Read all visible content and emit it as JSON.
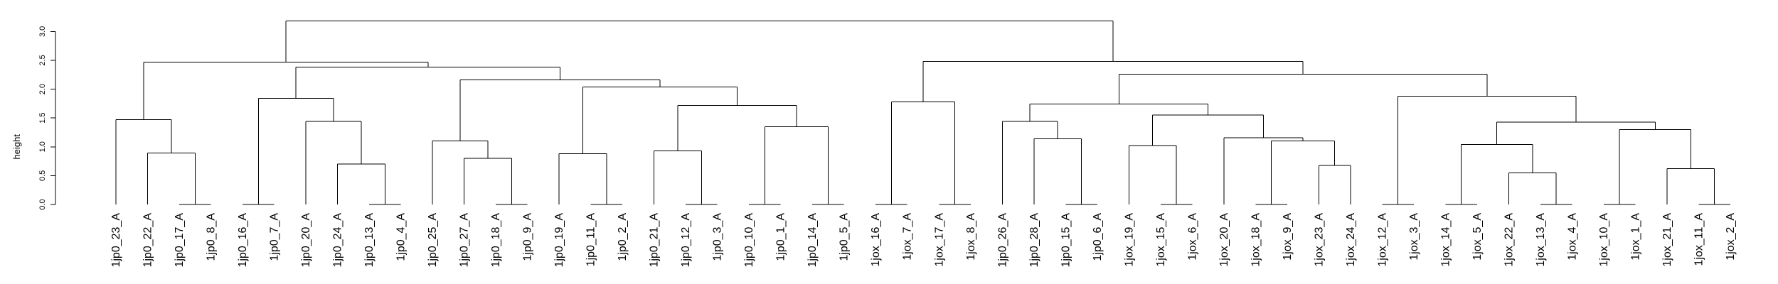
{
  "chart_data": {
    "type": "dendrogram",
    "ylabel": "height",
    "ylim": [
      0,
      3.3
    ],
    "yticks": [
      "0.0",
      "0.5",
      "1.0",
      "1.5",
      "2.0",
      "2.5",
      "3.0"
    ],
    "leaves": [
      "1jp0_23_A",
      "1jp0_22_A",
      "1jp0_17_A",
      "1jp0_8_A",
      "1jp0_16_A",
      "1jp0_7_A",
      "1jp0_20_A",
      "1jp0_24_A",
      "1jp0_13_A",
      "1jp0_4_A",
      "1jp0_25_A",
      "1jp0_27_A",
      "1jp0_18_A",
      "1jp0_9_A",
      "1jp0_19_A",
      "1jp0_11_A",
      "1jp0_2_A",
      "1jp0_21_A",
      "1jp0_12_A",
      "1jp0_3_A",
      "1jp0_10_A",
      "1jp0_1_A",
      "1jp0_14_A",
      "1jp0_5_A",
      "1jox_16_A",
      "1jox_7_A",
      "1jox_17_A",
      "1jox_8_A",
      "1jp0_26_A",
      "1jp0_28_A",
      "1jp0_15_A",
      "1jp0_6_A",
      "1jox_19_A",
      "1jox_15_A",
      "1jox_6_A",
      "1jox_20_A",
      "1jox_18_A",
      "1jox_9_A",
      "1jox_23_A",
      "1jox_24_A",
      "1jox_12_A",
      "1jox_3_A",
      "1jox_14_A",
      "1jox_5_A",
      "1jox_22_A",
      "1jox_13_A",
      "1jox_4_A",
      "1jox_10_A",
      "1jox_1_A",
      "1jox_21_A",
      "1jox_11_A",
      "1jox_2_A"
    ],
    "merges": [
      {
        "a": "L2",
        "b": "L3",
        "height": 0.0
      },
      {
        "a": "L1",
        "b": "M0",
        "height": 0.89
      },
      {
        "a": "L0",
        "b": "M1",
        "height": 1.47
      },
      {
        "a": "L4",
        "b": "L5",
        "height": 0.0
      },
      {
        "a": "L8",
        "b": "L9",
        "height": 0.0
      },
      {
        "a": "L7",
        "b": "M4",
        "height": 0.7
      },
      {
        "a": "L6",
        "b": "M5",
        "height": 1.44
      },
      {
        "a": "M3",
        "b": "M6",
        "height": 1.84
      },
      {
        "a": "L12",
        "b": "L13",
        "height": 0.0
      },
      {
        "a": "L11",
        "b": "M8",
        "height": 0.8
      },
      {
        "a": "L10",
        "b": "M9",
        "height": 1.1
      },
      {
        "a": "L15",
        "b": "L16",
        "height": 0.0
      },
      {
        "a": "L14",
        "b": "M11",
        "height": 0.88
      },
      {
        "a": "L18",
        "b": "L19",
        "height": 0.0
      },
      {
        "a": "L17",
        "b": "M13",
        "height": 0.93
      },
      {
        "a": "L20",
        "b": "L21",
        "height": 0.0
      },
      {
        "a": "L22",
        "b": "L23",
        "height": 0.0
      },
      {
        "a": "M15",
        "b": "M16",
        "height": 1.35
      },
      {
        "a": "M14",
        "b": "M17",
        "height": 1.72
      },
      {
        "a": "M12",
        "b": "M18",
        "height": 2.04
      },
      {
        "a": "M10",
        "b": "M19",
        "height": 2.16
      },
      {
        "a": "M7",
        "b": "M20",
        "height": 2.38
      },
      {
        "a": "M2",
        "b": "M21",
        "height": 2.47
      },
      {
        "a": "L24",
        "b": "L25",
        "height": 0.0
      },
      {
        "a": "L26",
        "b": "L27",
        "height": 0.0
      },
      {
        "a": "M23",
        "b": "M24",
        "height": 1.78
      },
      {
        "a": "L30",
        "b": "L31",
        "height": 0.0
      },
      {
        "a": "L29",
        "b": "M26",
        "height": 1.14
      },
      {
        "a": "L28",
        "b": "M27",
        "height": 1.44
      },
      {
        "a": "L33",
        "b": "L34",
        "height": 0.0
      },
      {
        "a": "L32",
        "b": "M29",
        "height": 1.02
      },
      {
        "a": "L36",
        "b": "L37",
        "height": 0.0
      },
      {
        "a": "L38",
        "b": "L39",
        "height": 0.68
      },
      {
        "a": "M31",
        "b": "M32",
        "height": 1.1
      },
      {
        "a": "L35",
        "b": "M33",
        "height": 1.16
      },
      {
        "a": "M30",
        "b": "M34",
        "height": 1.55
      },
      {
        "a": "M28",
        "b": "M35",
        "height": 1.74
      },
      {
        "a": "L40",
        "b": "L41",
        "height": 0.0
      },
      {
        "a": "L42",
        "b": "L43",
        "height": 0.0
      },
      {
        "a": "L45",
        "b": "L46",
        "height": 0.0
      },
      {
        "a": "L44",
        "b": "M39",
        "height": 0.55
      },
      {
        "a": "M38",
        "b": "M40",
        "height": 1.04
      },
      {
        "a": "L47",
        "b": "L48",
        "height": 0.0
      },
      {
        "a": "L50",
        "b": "L51",
        "height": 0.0
      },
      {
        "a": "L49",
        "b": "M43",
        "height": 0.62
      },
      {
        "a": "M42",
        "b": "M44",
        "height": 1.3
      },
      {
        "a": "M41",
        "b": "M45",
        "height": 1.43
      },
      {
        "a": "M37",
        "b": "M46",
        "height": 1.88
      },
      {
        "a": "M36",
        "b": "M47",
        "height": 2.26
      },
      {
        "a": "M25",
        "b": "M48",
        "height": 2.48
      },
      {
        "a": "M22",
        "b": "M49",
        "height": 3.18
      }
    ]
  }
}
